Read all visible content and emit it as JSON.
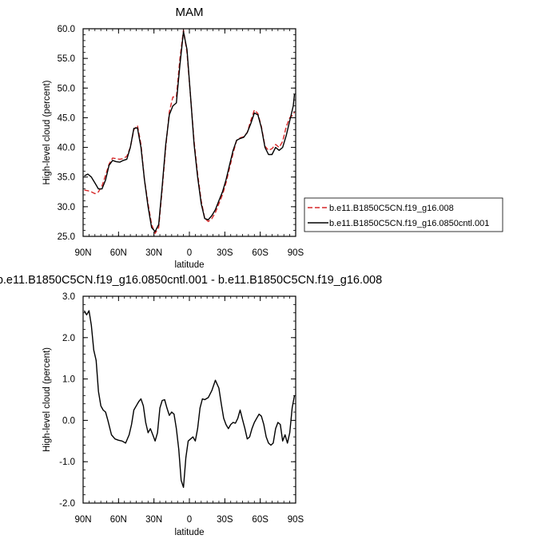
{
  "chart_data": [
    {
      "type": "line",
      "title": "MAM",
      "xlabel": "latitude",
      "ylabel": "High-level cloud (percent)",
      "xlim": [
        90,
        -90
      ],
      "ylim": [
        25.0,
        60.0
      ],
      "x_ticks": [
        "90N",
        "60N",
        "30N",
        "0",
        "30S",
        "60S",
        "90S"
      ],
      "x_tick_values": [
        90,
        60,
        30,
        0,
        -30,
        -60,
        -90
      ],
      "y_ticks": [
        "25.0",
        "30.0",
        "35.0",
        "40.0",
        "45.0",
        "50.0",
        "55.0",
        "60.0"
      ],
      "y_tick_values": [
        25,
        30,
        35,
        40,
        45,
        50,
        55,
        60
      ],
      "legend": "right",
      "series": [
        {
          "name": "b.e11.B1850C5CN.f19_g16.008",
          "color": "#d62728",
          "dash": "dashed",
          "x": [
            89,
            86,
            83,
            80,
            77,
            74,
            71,
            68,
            65,
            62,
            59,
            56,
            53,
            50,
            47,
            44,
            41,
            38,
            35,
            32,
            29,
            26,
            23,
            20,
            17,
            14,
            11,
            8,
            5,
            2,
            -1,
            -4,
            -7,
            -10,
            -13,
            -16,
            -19,
            -22,
            -25,
            -28,
            -31,
            -34,
            -37,
            -40,
            -43,
            -46,
            -49,
            -52,
            -55,
            -58,
            -61,
            -64,
            -67,
            -70,
            -73,
            -76,
            -79,
            -82,
            -85,
            -88,
            -89
          ],
          "y": [
            32.8,
            32.7,
            32.5,
            32.2,
            32.5,
            33.5,
            35.3,
            37.2,
            38.2,
            38.1,
            38.0,
            38.1,
            38.5,
            40.0,
            43.0,
            43.7,
            40.5,
            34.5,
            30.5,
            27.0,
            25.5,
            26.5,
            33.0,
            40.0,
            46.0,
            48.5,
            48.5,
            55.0,
            59.8,
            56.0,
            48.5,
            41.0,
            35.5,
            31.0,
            28.0,
            27.5,
            28.0,
            29.0,
            30.5,
            32.0,
            34.0,
            36.5,
            39.0,
            41.2,
            41.6,
            41.8,
            42.5,
            44.5,
            46.3,
            45.7,
            43.5,
            40.2,
            39.5,
            39.8,
            40.5,
            40.0,
            41.0,
            43.5,
            45.0,
            45.5,
            46.0
          ]
        },
        {
          "name": "b.e11.B1850C5CN.f19_g16.0850cntl.001",
          "color": "#000000",
          "dash": "solid",
          "x": [
            89,
            86,
            83,
            80,
            77,
            74,
            71,
            68,
            65,
            62,
            59,
            56,
            53,
            50,
            47,
            44,
            41,
            38,
            35,
            32,
            29,
            26,
            23,
            20,
            17,
            14,
            11,
            8,
            5,
            2,
            -1,
            -4,
            -7,
            -10,
            -13,
            -16,
            -19,
            -22,
            -25,
            -28,
            -31,
            -34,
            -37,
            -40,
            -43,
            -46,
            -49,
            -52,
            -55,
            -58,
            -61,
            -64,
            -67,
            -70,
            -73,
            -76,
            -79,
            -82,
            -85,
            -88,
            -89
          ],
          "y": [
            35.2,
            35.5,
            35.0,
            34.0,
            33.0,
            33.0,
            34.5,
            37.0,
            37.8,
            37.6,
            37.5,
            37.8,
            38.0,
            40.0,
            43.2,
            43.3,
            40.0,
            34.5,
            30.0,
            26.5,
            25.8,
            27.0,
            33.5,
            40.5,
            45.5,
            47.0,
            47.5,
            54.0,
            59.5,
            56.5,
            48.5,
            40.5,
            35.0,
            30.5,
            28.0,
            27.8,
            28.5,
            29.5,
            31.0,
            32.5,
            34.5,
            37.0,
            39.5,
            41.2,
            41.5,
            41.7,
            42.5,
            44.0,
            45.8,
            45.5,
            43.3,
            40.0,
            38.8,
            38.8,
            40.0,
            39.5,
            40.0,
            42.0,
            44.5,
            47.0,
            49.0
          ]
        }
      ]
    },
    {
      "type": "line",
      "title": "b.e11.B1850C5CN.f19_g16.0850cntl.001 - b.e11.B1850C5CN.f19_g16.008",
      "xlabel": "latitude",
      "ylabel": "High-level cloud (percent)",
      "xlim": [
        90,
        -90
      ],
      "ylim": [
        -2.0,
        3.0
      ],
      "x_ticks": [
        "90N",
        "60N",
        "30N",
        "0",
        "30S",
        "60S",
        "90S"
      ],
      "x_tick_values": [
        90,
        60,
        30,
        0,
        -30,
        -60,
        -90
      ],
      "y_ticks": [
        "-2.0",
        "-1.0",
        "0.0",
        "1.0",
        "2.0",
        "3.0"
      ],
      "y_tick_values": [
        -2,
        -1,
        0,
        1,
        2,
        3
      ],
      "series": [
        {
          "color": "#000000",
          "dash": "solid",
          "x": [
            89,
            87,
            85,
            83,
            81,
            79,
            77,
            75,
            73,
            71,
            69,
            66,
            63,
            60,
            57,
            54,
            51,
            49,
            47,
            45,
            43,
            41,
            39,
            37,
            35,
            33,
            31,
            29,
            27,
            25,
            23,
            21,
            19,
            17,
            15,
            13,
            11,
            9,
            7,
            5,
            3,
            1,
            -1,
            -3,
            -5,
            -7,
            -9,
            -11,
            -13,
            -16,
            -19,
            -22,
            -25,
            -27,
            -29,
            -31,
            -33,
            -35,
            -37,
            -39,
            -41,
            -43,
            -45,
            -47,
            -49,
            -51,
            -53,
            -55,
            -57,
            -59,
            -61,
            -63,
            -65,
            -67,
            -69,
            -71,
            -73,
            -75,
            -77,
            -79,
            -81,
            -83,
            -85,
            -87,
            -89
          ],
          "y": [
            2.65,
            2.55,
            2.65,
            2.3,
            1.7,
            1.45,
            0.7,
            0.35,
            0.25,
            0.2,
            0.0,
            -0.35,
            -0.45,
            -0.48,
            -0.5,
            -0.55,
            -0.35,
            -0.1,
            0.25,
            0.35,
            0.45,
            0.52,
            0.35,
            -0.05,
            -0.3,
            -0.2,
            -0.35,
            -0.5,
            -0.3,
            0.3,
            0.48,
            0.5,
            0.3,
            0.12,
            0.2,
            0.15,
            -0.2,
            -0.7,
            -1.45,
            -1.62,
            -0.9,
            -0.5,
            -0.45,
            -0.4,
            -0.5,
            -0.2,
            0.3,
            0.52,
            0.5,
            0.55,
            0.72,
            0.97,
            0.78,
            0.4,
            0.05,
            -0.1,
            -0.2,
            -0.1,
            -0.05,
            -0.07,
            0.05,
            0.25,
            0.02,
            -0.2,
            -0.45,
            -0.4,
            -0.2,
            -0.05,
            0.05,
            0.15,
            0.1,
            -0.1,
            -0.4,
            -0.55,
            -0.6,
            -0.55,
            -0.2,
            -0.05,
            -0.1,
            -0.5,
            -0.35,
            -0.55,
            -0.3,
            0.3,
            0.6
          ]
        }
      ]
    }
  ]
}
